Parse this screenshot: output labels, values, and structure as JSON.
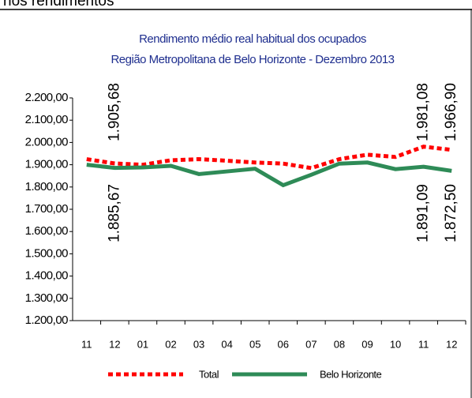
{
  "page_header": "nos rendimentos",
  "chart_data": {
    "type": "line",
    "title": "Rendimento médio real habitual dos ocupados",
    "subtitle": "Região Metropolitana de Belo Horizonte - Dezembro 2013",
    "categories": [
      "11",
      "12",
      "01",
      "02",
      "03",
      "04",
      "05",
      "06",
      "07",
      "08",
      "09",
      "10",
      "11",
      "12"
    ],
    "series": [
      {
        "name": "Total",
        "color": "#ff0000",
        "dash": true,
        "values": [
          1925,
          1905.68,
          1900,
          1920,
          1925,
          1918,
          1910,
          1905,
          1885,
          1925,
          1945,
          1935,
          1981.08,
          1966.9
        ],
        "value_labels": [
          null,
          "1.905,68",
          null,
          null,
          null,
          null,
          null,
          null,
          null,
          null,
          null,
          null,
          "1.981,08",
          "1.966,90"
        ]
      },
      {
        "name": "Belo Horizonte",
        "color": "#2e8b57",
        "dash": false,
        "values": [
          1900,
          1885.67,
          1888,
          1895,
          1858,
          1870,
          1882,
          1808,
          1855,
          1905,
          1910,
          1880,
          1891.09,
          1872.5
        ],
        "value_labels": [
          null,
          "1.885,67",
          null,
          null,
          null,
          null,
          null,
          null,
          null,
          null,
          null,
          null,
          "1.891,09",
          "1.872,50"
        ]
      }
    ],
    "ylim": [
      1200,
      2200
    ],
    "yticks": [
      {
        "value": 1200,
        "label": "1.200,00"
      },
      {
        "value": 1300,
        "label": "1.300,00"
      },
      {
        "value": 1400,
        "label": "1.400,00"
      },
      {
        "value": 1500,
        "label": "1.500,00"
      },
      {
        "value": 1600,
        "label": "1.600,00"
      },
      {
        "value": 1700,
        "label": "1.700,00"
      },
      {
        "value": 1800,
        "label": "1.800,00"
      },
      {
        "value": 1900,
        "label": "1.900,00"
      },
      {
        "value": 2000,
        "label": "2.000,00"
      },
      {
        "value": 2100,
        "label": "2.100,00"
      },
      {
        "value": 2200,
        "label": "2.200,00"
      }
    ],
    "legend": "bottom"
  }
}
